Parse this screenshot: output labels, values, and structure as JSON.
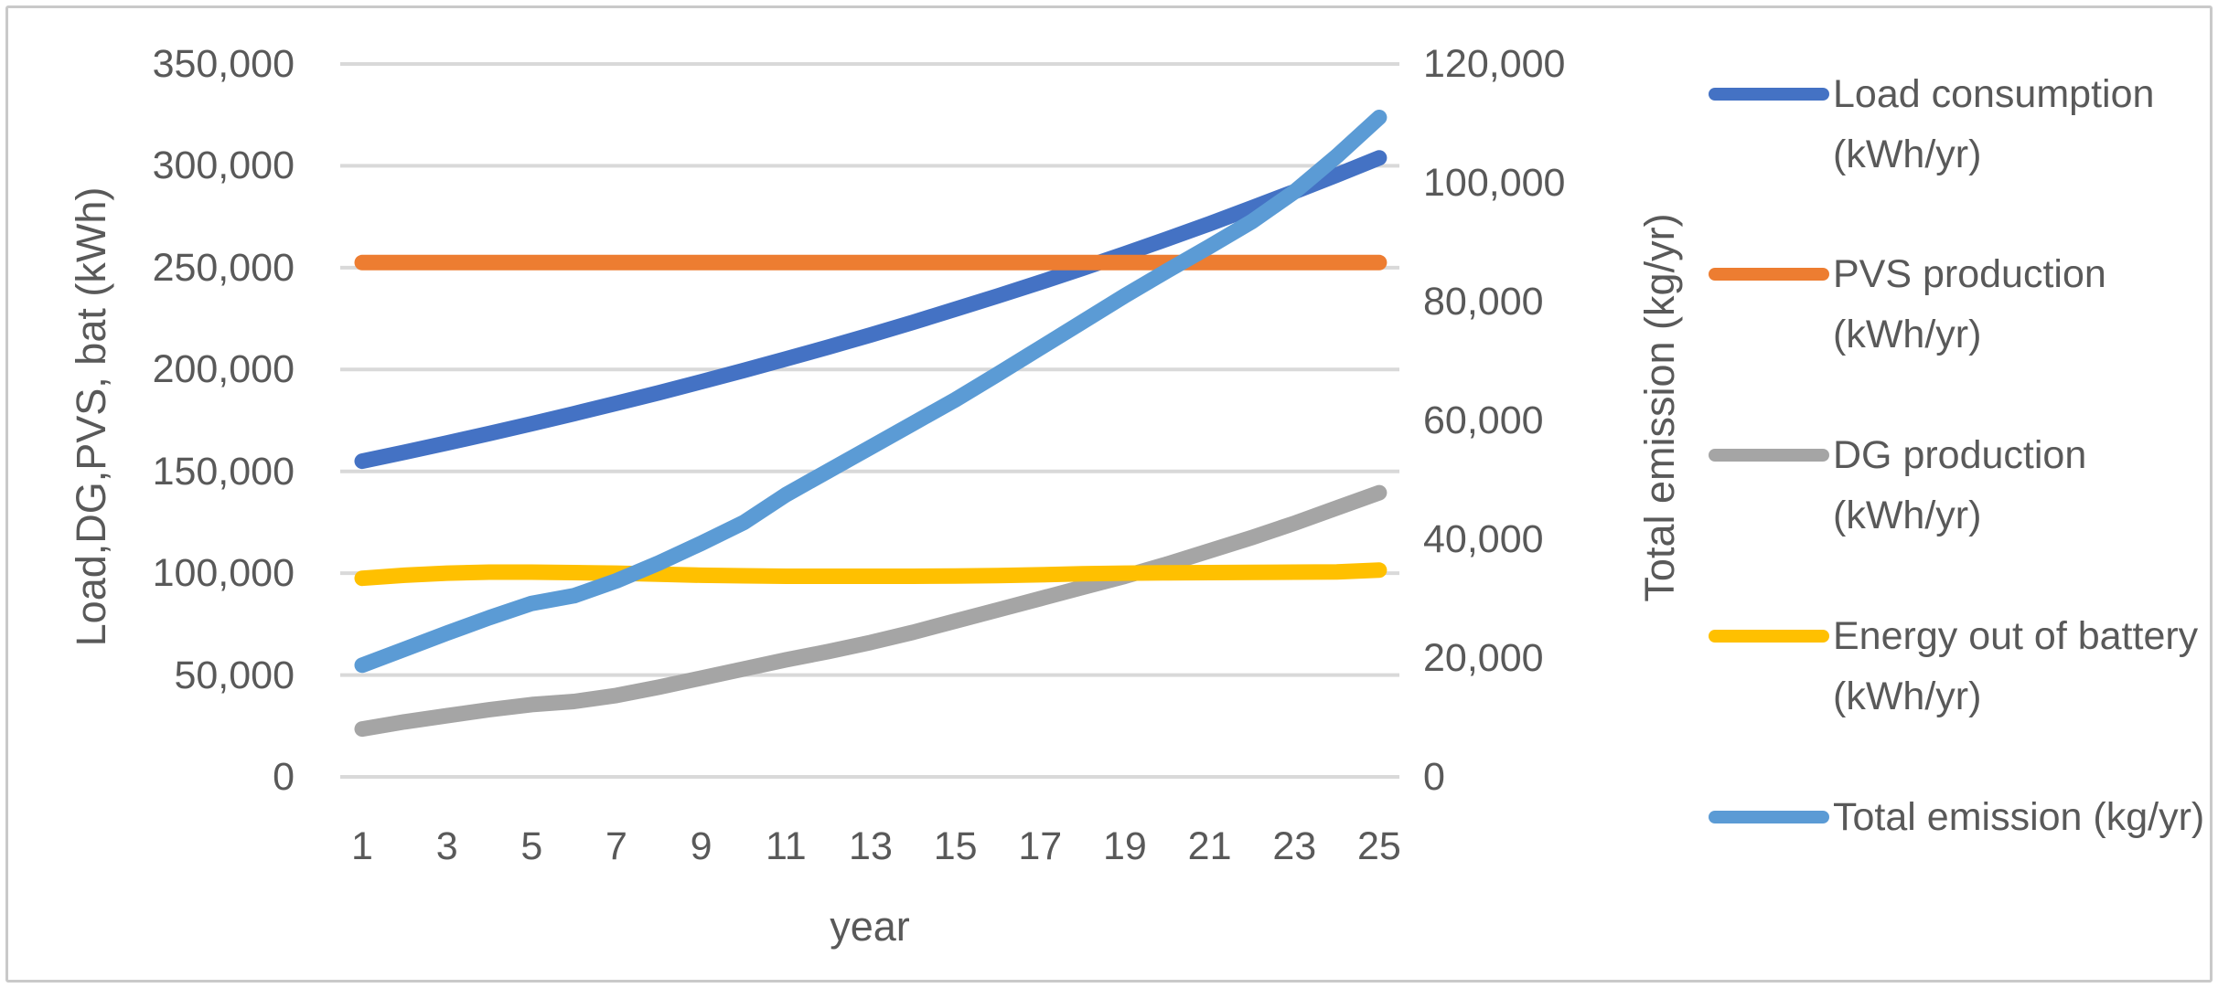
{
  "chart_data": {
    "type": "line",
    "x_label": "year",
    "x": [
      1,
      2,
      3,
      4,
      5,
      6,
      7,
      8,
      9,
      10,
      11,
      12,
      13,
      14,
      15,
      16,
      17,
      18,
      19,
      20,
      21,
      22,
      23,
      24,
      25
    ],
    "x_tick_labels": [
      "1",
      "3",
      "5",
      "7",
      "9",
      "11",
      "13",
      "15",
      "17",
      "19",
      "21",
      "23",
      "25"
    ],
    "left_axis": {
      "title": "Load,DG,PVS, bat (kWh)",
      "min": 0,
      "max": 350000,
      "tick_step": 50000,
      "tick_labels": [
        "0",
        "50,000",
        "100,000",
        "150,000",
        "200,000",
        "250,000",
        "300,000",
        "350,000"
      ]
    },
    "right_axis": {
      "title": "Total emission (kg/yr)",
      "min": 0,
      "max": 120000,
      "tick_step": 20000,
      "tick_labels": [
        "0",
        "20,000",
        "40,000",
        "60,000",
        "80,000",
        "100,000",
        "120,000"
      ]
    },
    "grid": true,
    "legend_position": "right",
    "colors": {
      "grid": "#d9d9d9",
      "text": "#595959",
      "frame_border": "#c9c9c9"
    },
    "series": [
      {
        "name": "Load consumption (kWh/yr)",
        "axis": "left",
        "color": "#4472C4",
        "values": [
          155000,
          159400,
          163900,
          168600,
          173400,
          178300,
          183400,
          188600,
          194000,
          199500,
          205200,
          211000,
          217000,
          223200,
          229600,
          236100,
          242800,
          249700,
          256800,
          264100,
          271600,
          279400,
          287300,
          295500,
          303900
        ]
      },
      {
        "name": "PVS production (kWh/yr)",
        "axis": "left",
        "color": "#ED7D31",
        "values": [
          252500,
          252500,
          252500,
          252500,
          252500,
          252500,
          252500,
          252500,
          252500,
          252500,
          252500,
          252500,
          252500,
          252500,
          252500,
          252500,
          252500,
          252500,
          252500,
          252500,
          252500,
          252500,
          252500,
          252500,
          252500
        ]
      },
      {
        "name": "DG production (kWh/yr)",
        "axis": "left",
        "color": "#A5A5A5",
        "values": [
          23500,
          27000,
          30000,
          33000,
          35500,
          37000,
          40000,
          44000,
          48500,
          53000,
          57500,
          61500,
          66000,
          71000,
          76500,
          82000,
          87500,
          93000,
          98500,
          104500,
          111000,
          117500,
          124500,
          132000,
          139500
        ]
      },
      {
        "name": "Energy out of battery (kWh/yr)",
        "axis": "left",
        "color": "#FFC000",
        "values": [
          97500,
          99000,
          100000,
          100500,
          100500,
          100300,
          100000,
          99500,
          99000,
          98700,
          98500,
          98500,
          98500,
          98500,
          98600,
          98800,
          99200,
          99700,
          100000,
          100200,
          100300,
          100400,
          100500,
          100600,
          101500
        ]
      },
      {
        "name": "Total emission (kg/yr)",
        "axis": "right",
        "color": "#5B9BD5",
        "values": [
          18800,
          21500,
          24200,
          26800,
          29200,
          30500,
          33000,
          36000,
          39300,
          42800,
          47500,
          51500,
          55500,
          59500,
          63500,
          67800,
          72200,
          76600,
          81000,
          85200,
          89300,
          93500,
          98500,
          104500,
          111000
        ]
      }
    ],
    "legend": [
      {
        "label": "Load consumption (kWh/yr)",
        "color": "#4472C4"
      },
      {
        "label": "PVS production (kWh/yr)",
        "color": "#ED7D31"
      },
      {
        "label": "DG production (kWh/yr)",
        "color": "#A5A5A5"
      },
      {
        "label": "Energy out of battery (kWh/yr)",
        "color": "#FFC000"
      },
      {
        "label": "Total emission (kg/yr)",
        "color": "#5B9BD5"
      }
    ]
  }
}
